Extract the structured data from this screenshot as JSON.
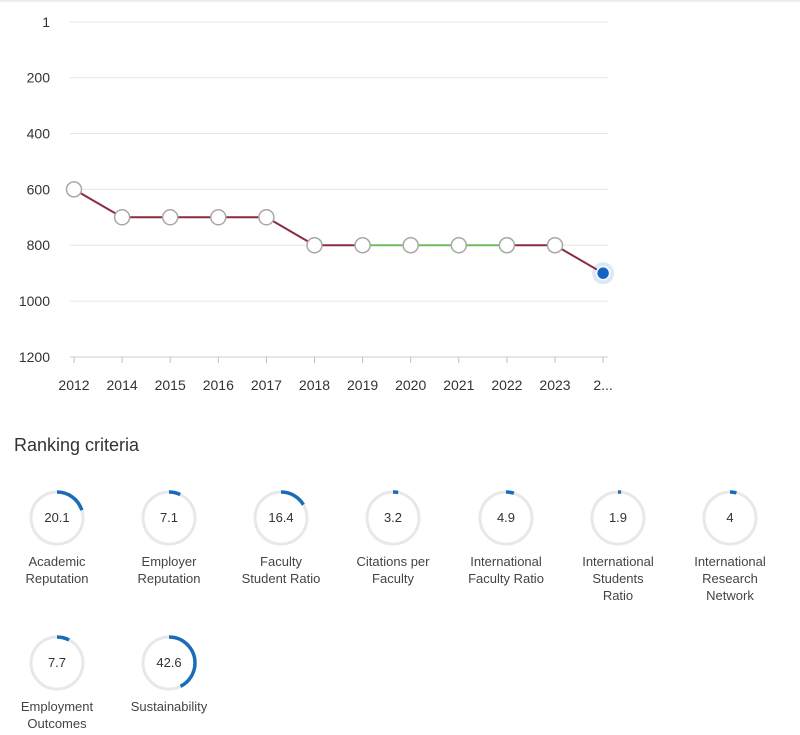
{
  "chart_data": {
    "type": "line",
    "x": [
      "2012",
      "2014",
      "2015",
      "2016",
      "2017",
      "2018",
      "2019",
      "2020",
      "2021",
      "2022",
      "2023",
      "2..."
    ],
    "y": [
      600,
      700,
      700,
      700,
      700,
      800,
      800,
      800,
      800,
      800,
      800,
      900
    ],
    "y_ticks": [
      "1",
      "200",
      "400",
      "600",
      "800",
      "1000",
      "1200"
    ],
    "ylim": [
      1,
      1200
    ],
    "y_inverted": true,
    "grid": true,
    "segment_colors": [
      "#8b2b3e",
      "#8b2b3e",
      "#8b2b3e",
      "#8b2b3e",
      "#8b2b3e",
      "#8b2b3e",
      "#6bbf59",
      "#6bbf59",
      "#6bbf59",
      "#8b2b3e",
      "#8b2b3e"
    ],
    "highlight_color": "#1565c0"
  },
  "criteria_section": {
    "title": "Ranking criteria",
    "accent_color": "#1a6bb8",
    "track_color": "#e8e8e8",
    "items": [
      {
        "value": "20.1",
        "label": "Academic\nReputation"
      },
      {
        "value": "7.1",
        "label": "Employer\nReputation"
      },
      {
        "value": "16.4",
        "label": "Faculty\nStudent Ratio"
      },
      {
        "value": "3.2",
        "label": "Citations per\nFaculty"
      },
      {
        "value": "4.9",
        "label": "International\nFaculty Ratio"
      },
      {
        "value": "1.9",
        "label": "International\nStudents\nRatio"
      },
      {
        "value": "4",
        "label": "International\nResearch\nNetwork"
      },
      {
        "value": "7.7",
        "label": "Employment\nOutcomes"
      },
      {
        "value": "42.6",
        "label": "Sustainability"
      }
    ]
  }
}
